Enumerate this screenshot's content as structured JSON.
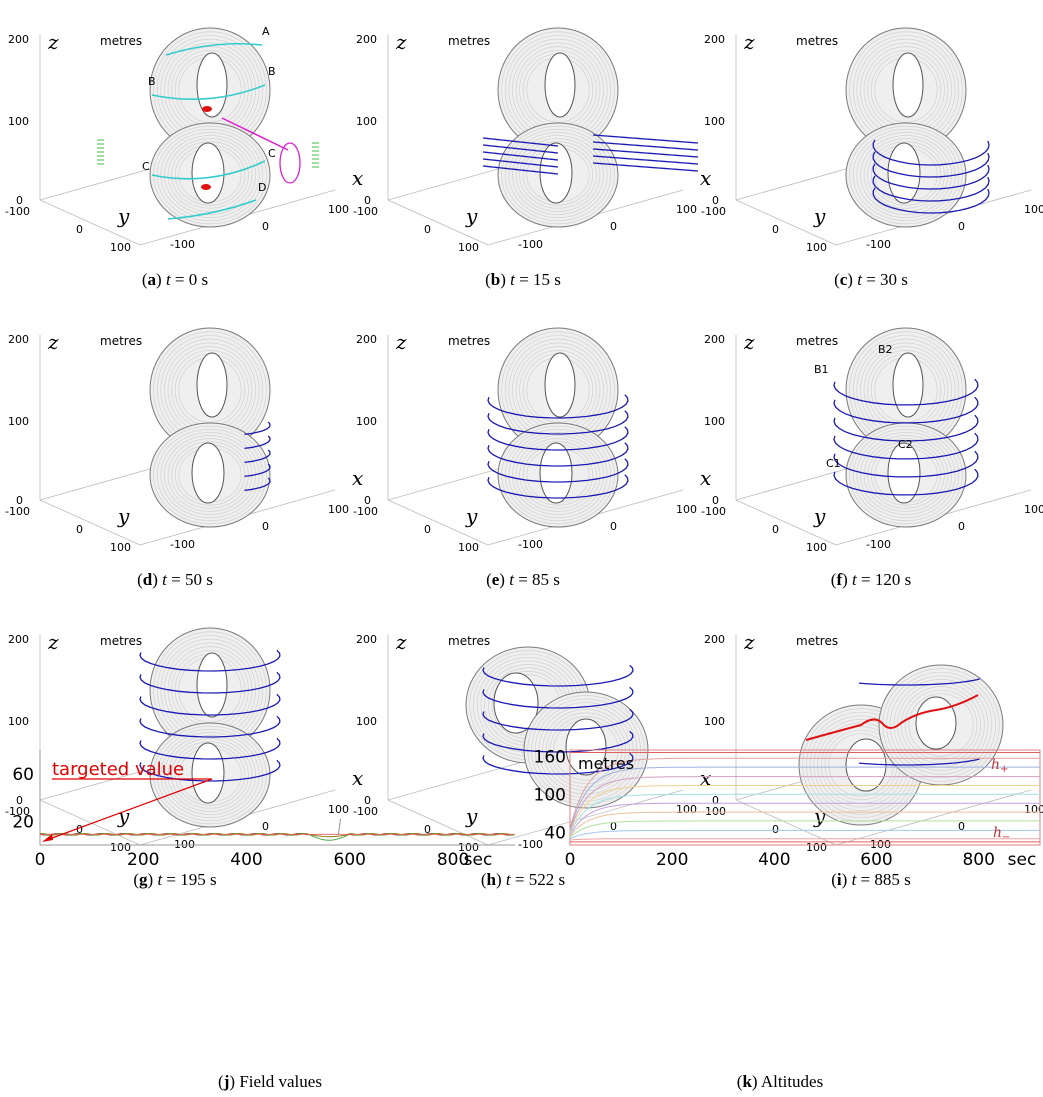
{
  "panels": [
    {
      "id": "a",
      "letter": "a",
      "t": "0",
      "labels": [
        "A",
        "B",
        "B",
        "C",
        "C",
        "D"
      ]
    },
    {
      "id": "b",
      "letter": "b",
      "t": "15",
      "labels": []
    },
    {
      "id": "c",
      "letter": "c",
      "t": "30",
      "labels": []
    },
    {
      "id": "d",
      "letter": "d",
      "t": "50",
      "labels": []
    },
    {
      "id": "e",
      "letter": "e",
      "t": "85",
      "labels": []
    },
    {
      "id": "f",
      "letter": "f",
      "t": "120",
      "labels": [
        "B1",
        "B2",
        "C1",
        "C2"
      ]
    },
    {
      "id": "g",
      "letter": "g",
      "t": "195",
      "labels": []
    },
    {
      "id": "h",
      "letter": "h",
      "t": "522",
      "labels": []
    },
    {
      "id": "i",
      "letter": "i",
      "t": "885",
      "labels": []
    }
  ],
  "axes3d": {
    "unit_label": "metres",
    "z_ticks": [
      "200",
      "100",
      "0"
    ],
    "y_ticks": [
      "-100",
      "0",
      "100"
    ],
    "x_ticks": [
      "-100",
      "0",
      "100"
    ],
    "x_var": "x",
    "y_var": "y",
    "z_var": "z",
    "time_var": "t",
    "time_unit": "s"
  },
  "colors": {
    "surface": "#9a9a9a",
    "marker": "#1a1ab4",
    "ring": "#33cccc",
    "red": "#e01010",
    "magenta": "#e020d0",
    "green": "#44bb44"
  },
  "chart_data": [
    {
      "id": "j",
      "type": "line",
      "caption_letter": "j",
      "caption_text": "Field values",
      "x_ticks": [
        "0",
        "200",
        "400",
        "600",
        "800"
      ],
      "x_unit": "sec",
      "y_ticks": [
        "20",
        "60"
      ],
      "xlim": [
        0,
        920
      ],
      "ylim": [
        0,
        80
      ],
      "annotation": "targeted value",
      "target_value": 9,
      "series": [
        {
          "values_note": "",
          "x": [
            0,
            100,
            200,
            300,
            400,
            500,
            540,
            560,
            575,
            590,
            700,
            800,
            920
          ],
          "y": [
            9,
            9,
            9,
            9,
            9,
            9,
            6,
            2,
            4,
            9,
            9,
            9,
            9
          ]
        }
      ]
    },
    {
      "id": "k",
      "type": "line",
      "caption_letter": "k",
      "caption_text": "Altitudes",
      "x_ticks": [
        "0",
        "200",
        "400",
        "600",
        "800"
      ],
      "x_unit": "sec",
      "y_ticks": [
        "40",
        "100",
        "160"
      ],
      "unit_label": "metres",
      "h_plus": "h+",
      "h_minus": "h−",
      "xlim": [
        0,
        920
      ],
      "ylim": [
        20,
        170
      ],
      "levels_final": [
        30,
        43,
        58,
        72,
        86,
        100,
        114,
        128,
        143,
        157
      ],
      "levels_start": [
        28,
        30,
        32,
        34,
        36,
        38,
        40,
        42,
        44,
        46
      ],
      "series_colors": [
        "#f4a0a0",
        "#a0c8f0",
        "#b0e0a0",
        "#e8c0a0",
        "#c0a0e0",
        "#a0e0e0",
        "#f0d090",
        "#d0a0c0",
        "#a0b0e0",
        "#e0a0a0"
      ]
    }
  ]
}
